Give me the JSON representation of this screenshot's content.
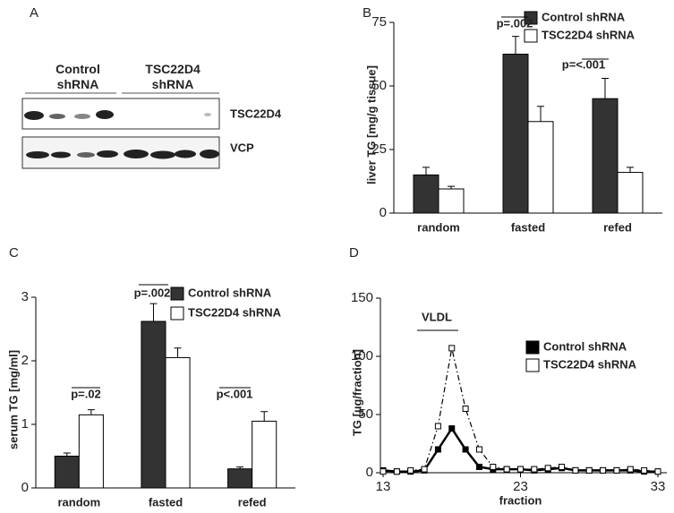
{
  "blot": {
    "panel_label": "A",
    "groups": [
      "Control shRNA",
      "TSC22D4 shRNA"
    ],
    "rows": [
      "TSC22D4",
      "VCP"
    ]
  },
  "chart_data": [
    {
      "type": "bar",
      "panel_label": "B",
      "ylabel": "liver TG  [mg/g tissue]",
      "categories": [
        "random",
        "fasted",
        "refed"
      ],
      "series": [
        {
          "name": "Control shRNA",
          "color": "#333333",
          "values": [
            15,
            62.5,
            45
          ],
          "errors": [
            3,
            7,
            8
          ]
        },
        {
          "name": "TSC22D4 shRNA",
          "color": "#ffffff",
          "values": [
            9.5,
            36,
            16
          ],
          "errors": [
            1,
            6,
            2
          ]
        }
      ],
      "ylim": [
        0,
        75
      ],
      "yticks": [
        0,
        25,
        50,
        75
      ],
      "annotations": [
        "p=.002",
        "p=<.001"
      ]
    },
    {
      "type": "bar",
      "panel_label": "C",
      "ylabel": "serum TG  [mg/ml]",
      "categories": [
        "random",
        "fasted",
        "refed"
      ],
      "series": [
        {
          "name": "Control shRNA",
          "color": "#333333",
          "values": [
            0.5,
            2.62,
            0.3
          ],
          "errors": [
            0.05,
            0.28,
            0.03
          ]
        },
        {
          "name": "TSC22D4 shRNA",
          "color": "#ffffff",
          "values": [
            1.15,
            2.05,
            1.05
          ],
          "errors": [
            0.08,
            0.15,
            0.15
          ]
        }
      ],
      "ylim": [
        0,
        3
      ],
      "yticks": [
        0,
        1,
        2,
        3
      ],
      "annotations": [
        "p=.02",
        "p=.002",
        "p<.001"
      ]
    },
    {
      "type": "line",
      "panel_label": "D",
      "ylabel": "TG [µg/fraction]",
      "xlabel": "fraction",
      "x": [
        13,
        14,
        15,
        16,
        17,
        18,
        19,
        20,
        21,
        22,
        23,
        24,
        25,
        26,
        27,
        28,
        29,
        30,
        31,
        32,
        33
      ],
      "series": [
        {
          "name": "Control shRNA",
          "color": "#000000",
          "line_style": "solid",
          "marker_fill": "#000000",
          "values": [
            2,
            1,
            1,
            2,
            20,
            38,
            20,
            5,
            3,
            3,
            3,
            2,
            3,
            4,
            2,
            2,
            2,
            2,
            2,
            1,
            1
          ]
        },
        {
          "name": "TSC22D4 shRNA",
          "color": "#000000",
          "line_style": "dashdot",
          "marker_fill": "#ffffff",
          "values": [
            1,
            1,
            2,
            3,
            40,
            107,
            55,
            20,
            5,
            3,
            3,
            3,
            4,
            5,
            2,
            2,
            2,
            2,
            3,
            2,
            1
          ]
        }
      ],
      "xlim": [
        13,
        33
      ],
      "xticks": [
        13,
        23,
        33
      ],
      "ylim": [
        0,
        150
      ],
      "yticks": [
        0,
        50,
        100,
        150
      ],
      "annotations": [
        "VLDL"
      ]
    }
  ]
}
